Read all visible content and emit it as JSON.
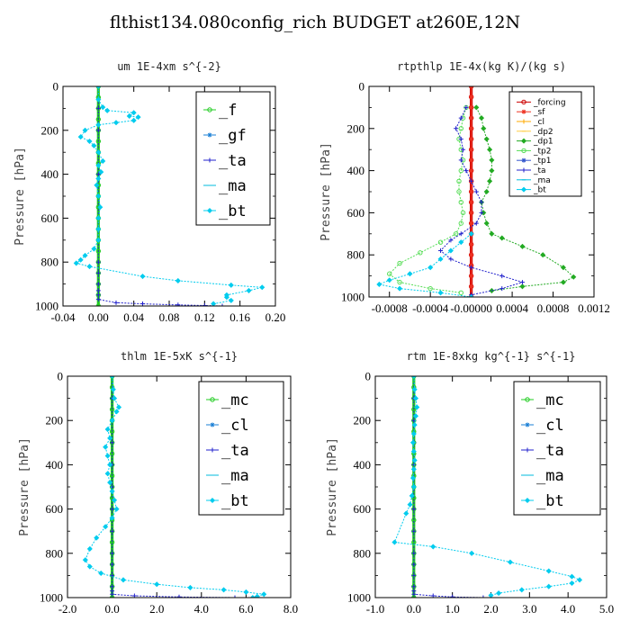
{
  "figure": {
    "title": "flthist134.080config_rich  BUDGET at260E,12N"
  },
  "chart_data": [
    {
      "type": "line",
      "title": "um  1E-4xm s^{-2}",
      "ylabel": "Pressure [hPa]",
      "xlim": [
        -0.04,
        0.2
      ],
      "ylim": [
        1000,
        0
      ],
      "x_ticks": [
        -0.04,
        0.0,
        0.04,
        0.08,
        0.12,
        0.16,
        0.2
      ],
      "x_tick_labels": [
        "-0.04",
        "0.00",
        "0.04",
        "0.08",
        "0.12",
        "0.16",
        "0.20"
      ],
      "y_ticks": [
        0,
        200,
        400,
        600,
        800,
        1000
      ],
      "legend": {
        "position": "top-right",
        "style": "big"
      },
      "series": [
        {
          "name": "_f",
          "color": "#22cc22",
          "x": [
            0,
            0,
            0,
            0,
            0,
            0,
            0,
            0,
            0,
            0,
            0,
            0,
            0,
            0,
            0,
            0,
            0,
            0,
            0,
            0,
            0
          ],
          "y": [
            0,
            50,
            100,
            150,
            200,
            250,
            300,
            350,
            400,
            450,
            500,
            550,
            600,
            650,
            700,
            750,
            800,
            850,
            900,
            950,
            1000
          ]
        },
        {
          "name": "_gf",
          "color": "#1a7fd6",
          "x": [],
          "y": []
        },
        {
          "name": "_ta",
          "color": "#2222cc",
          "x": [
            0,
            0,
            0,
            0,
            0,
            0,
            0,
            0,
            0,
            0,
            0,
            0,
            0,
            0,
            0.02,
            0.05,
            0.09,
            0.12,
            0.14
          ],
          "y": [
            0,
            100,
            200,
            300,
            400,
            500,
            600,
            700,
            800,
            850,
            900,
            930,
            950,
            970,
            985,
            990,
            995,
            998,
            1000
          ]
        },
        {
          "name": "_ma",
          "color": "#00bbdd",
          "x": [],
          "y": []
        },
        {
          "name": "_bt",
          "color": "#00ccee",
          "x": [
            0.0,
            0.0,
            0.005,
            0.01,
            0.04,
            0.035,
            0.045,
            0.04,
            0.02,
            0.0,
            -0.015,
            -0.02,
            -0.01,
            -0.005,
            0.0,
            0.005,
            0.0,
            0.003,
            0.0,
            -0.002,
            0.0,
            0.002,
            0.0,
            0.0,
            0.0,
            -0.005,
            -0.015,
            -0.02,
            -0.025,
            -0.01,
            0.05,
            0.09,
            0.15,
            0.185,
            0.17,
            0.145,
            0.145,
            0.15,
            0.13
          ],
          "y": [
            0,
            60,
            95,
            110,
            120,
            135,
            140,
            155,
            165,
            175,
            200,
            230,
            250,
            270,
            300,
            340,
            360,
            390,
            420,
            450,
            500,
            550,
            600,
            650,
            700,
            740,
            770,
            790,
            805,
            820,
            865,
            885,
            905,
            915,
            930,
            950,
            960,
            975,
            990
          ]
        }
      ]
    },
    {
      "type": "line",
      "title": "rtpthlp  1E-4x(kg K)/(kg s)",
      "ylabel": "Pressure [hPa]",
      "xlim": [
        -0.001,
        0.0012
      ],
      "ylim": [
        1000,
        0
      ],
      "x_ticks": [
        -0.0008,
        -0.0004,
        0.0,
        0.0004,
        0.0008,
        0.0012
      ],
      "x_tick_labels": [
        "-0.0008",
        "-0.0004",
        "-0.00000",
        "0.0004",
        "0.0008",
        "0.0012"
      ],
      "y_ticks": [
        0,
        200,
        400,
        600,
        800,
        1000
      ],
      "legend": {
        "position": "top-right",
        "style": "small"
      },
      "series": [
        {
          "name": "_forcing",
          "color": "#cc0000",
          "x": [
            0,
            0,
            0,
            0,
            0,
            0,
            0,
            0,
            0,
            0,
            0,
            0,
            0,
            0,
            0,
            0,
            0,
            0,
            0,
            0,
            0
          ],
          "y": [
            0,
            50,
            100,
            150,
            200,
            250,
            300,
            350,
            400,
            450,
            500,
            550,
            600,
            650,
            700,
            750,
            800,
            850,
            900,
            950,
            1000
          ]
        },
        {
          "name": "_sf",
          "color": "#ee3322",
          "x": [
            0,
            0,
            0,
            0,
            0,
            0,
            0,
            0,
            0,
            0,
            0,
            0,
            0,
            0,
            0,
            0,
            0,
            0,
            0,
            0,
            0
          ],
          "y": [
            0,
            50,
            100,
            150,
            200,
            250,
            300,
            350,
            400,
            450,
            500,
            550,
            600,
            650,
            700,
            750,
            800,
            850,
            900,
            950,
            1000
          ]
        },
        {
          "name": "_cl",
          "color": "#ffaa00",
          "x": [],
          "y": []
        },
        {
          "name": "_dp2",
          "color": "#ffcc44",
          "x": [],
          "y": []
        },
        {
          "name": "_dp1",
          "color": "#22aa22",
          "x": [
            5e-05,
            0.0001,
            0.00012,
            0.00015,
            0.00018,
            0.0002,
            0.0002,
            0.00018,
            0.00015,
            0.0001,
            0.00012,
            0.00015,
            0.0002,
            0.0003,
            0.0005,
            0.0007,
            0.0009,
            0.001,
            0.0009,
            0.0005,
            0.0002
          ],
          "y": [
            100,
            150,
            200,
            250,
            300,
            350,
            400,
            450,
            500,
            550,
            600,
            650,
            700,
            720,
            760,
            800,
            860,
            905,
            930,
            950,
            970
          ]
        },
        {
          "name": "_tp2",
          "color": "#55dd55",
          "x": [
            -5e-05,
            -8e-05,
            -0.0001,
            -0.00012,
            -0.0001,
            -8e-05,
            -0.0001,
            -0.00012,
            -0.00012,
            -0.0001,
            -8e-05,
            -0.0001,
            -0.00015,
            -0.0003,
            -0.0005,
            -0.0007,
            -0.0008,
            -0.0007,
            -0.0004,
            -0.0001
          ],
          "y": [
            100,
            150,
            200,
            250,
            300,
            350,
            400,
            450,
            500,
            550,
            600,
            650,
            700,
            740,
            790,
            840,
            890,
            930,
            960,
            980
          ]
        },
        {
          "name": "_tp1",
          "color": "#3355cc",
          "x": [],
          "y": []
        },
        {
          "name": "_ta",
          "color": "#2222cc",
          "x": [
            -5e-05,
            -0.0001,
            -0.00015,
            -0.0001,
            -8e-05,
            -0.0001,
            -5e-05,
            0.0,
            5e-05,
            0.0001,
            0.0001,
            5e-05,
            -0.0001,
            -0.0002,
            -0.0003,
            -0.0002,
            0.0,
            0.0003,
            0.0005,
            0.0003,
            0.0
          ],
          "y": [
            100,
            150,
            200,
            250,
            300,
            350,
            400,
            450,
            500,
            550,
            600,
            650,
            700,
            730,
            780,
            820,
            860,
            900,
            930,
            960,
            990
          ]
        },
        {
          "name": "_ma",
          "color": "#00bbdd",
          "x": [],
          "y": []
        },
        {
          "name": "_bt",
          "color": "#00ccee",
          "x": [
            0.0,
            -0.0001,
            -0.0002,
            -0.0003,
            -0.0004,
            -0.0006,
            -0.0008,
            -0.0009,
            -0.0007,
            -0.0003,
            0.0
          ],
          "y": [
            700,
            740,
            780,
            820,
            860,
            890,
            920,
            940,
            960,
            980,
            1000
          ]
        }
      ]
    },
    {
      "type": "line",
      "title": "thlm  1E-5xK s^{-1}",
      "ylabel": "Pressure [hPa]",
      "xlim": [
        -2.0,
        8.0
      ],
      "ylim": [
        1000,
        0
      ],
      "x_ticks": [
        -2.0,
        0.0,
        2.0,
        4.0,
        6.0,
        8.0
      ],
      "x_tick_labels": [
        "-2.0",
        "0.0",
        "2.0",
        "4.0",
        "6.0",
        "8.0"
      ],
      "y_ticks": [
        0,
        200,
        400,
        600,
        800,
        1000
      ],
      "legend": {
        "position": "top-right",
        "style": "big"
      },
      "series": [
        {
          "name": "_mc",
          "color": "#22cc22",
          "x": [
            0,
            0,
            0,
            0,
            0,
            0,
            0,
            0,
            0,
            0,
            0,
            0,
            0,
            0,
            0,
            0,
            0,
            0,
            0,
            0,
            0
          ],
          "y": [
            0,
            50,
            100,
            150,
            200,
            250,
            300,
            350,
            400,
            450,
            500,
            550,
            600,
            650,
            700,
            750,
            800,
            850,
            900,
            950,
            1000
          ]
        },
        {
          "name": "_cl",
          "color": "#1a7fd6",
          "x": [],
          "y": []
        },
        {
          "name": "_ta",
          "color": "#2222cc",
          "x": [
            0,
            0,
            0,
            0,
            0,
            0,
            0,
            0,
            0,
            0,
            0,
            0,
            0,
            0,
            1.0,
            3.0,
            5.5
          ],
          "y": [
            0,
            100,
            200,
            300,
            400,
            500,
            600,
            700,
            800,
            850,
            900,
            950,
            970,
            985,
            992,
            997,
            1000
          ]
        },
        {
          "name": "_ma",
          "color": "#00bbdd",
          "x": [],
          "y": []
        },
        {
          "name": "_bt",
          "color": "#00ccee",
          "x": [
            0.0,
            0.05,
            0.1,
            0.3,
            0.2,
            0.0,
            -0.2,
            -0.1,
            -0.3,
            -0.2,
            -0.1,
            -0.2,
            -0.1,
            0.0,
            0.1,
            0.2,
            0.0,
            -0.3,
            -0.7,
            -1.0,
            -1.2,
            -1.0,
            -0.5,
            0.5,
            2.0,
            3.5,
            5.0,
            6.0,
            6.8,
            6.5,
            6.3
          ],
          "y": [
            0,
            60,
            100,
            140,
            160,
            200,
            240,
            280,
            320,
            360,
            400,
            440,
            480,
            520,
            560,
            600,
            640,
            680,
            730,
            780,
            830,
            860,
            890,
            920,
            940,
            955,
            965,
            975,
            985,
            995,
            1000
          ]
        }
      ]
    },
    {
      "type": "line",
      "title": "rtm  1E-8xkg kg^{-1} s^{-1}",
      "ylabel": "Pressure [hPa]",
      "xlim": [
        -1.0,
        5.0
      ],
      "ylim": [
        1000,
        0
      ],
      "x_ticks": [
        -1.0,
        0.0,
        1.0,
        2.0,
        3.0,
        4.0,
        5.0
      ],
      "x_tick_labels": [
        "-1.0",
        "0.0",
        "1.0",
        "2.0",
        "3.0",
        "4.0",
        "5.0"
      ],
      "y_ticks": [
        0,
        200,
        400,
        600,
        800,
        1000
      ],
      "legend": {
        "position": "top-right",
        "style": "big"
      },
      "series": [
        {
          "name": "_mc",
          "color": "#22cc22",
          "x": [
            0,
            0,
            0,
            0,
            0,
            0,
            0,
            0,
            0,
            0,
            0,
            0,
            0,
            0,
            0,
            0,
            0,
            0,
            0,
            0,
            0
          ],
          "y": [
            0,
            50,
            100,
            150,
            200,
            250,
            300,
            350,
            400,
            450,
            500,
            550,
            600,
            650,
            700,
            750,
            800,
            850,
            900,
            950,
            1000
          ]
        },
        {
          "name": "_cl",
          "color": "#1a7fd6",
          "x": [],
          "y": []
        },
        {
          "name": "_ta",
          "color": "#2222cc",
          "x": [
            0,
            0,
            0,
            0,
            0,
            0,
            0,
            0,
            0,
            0,
            0,
            0,
            0,
            0,
            0.5,
            1.0,
            1.8
          ],
          "y": [
            0,
            100,
            200,
            300,
            400,
            500,
            600,
            700,
            800,
            850,
            900,
            950,
            970,
            985,
            992,
            997,
            1000
          ]
        },
        {
          "name": "_ma",
          "color": "#00bbdd",
          "x": [],
          "y": []
        },
        {
          "name": "_bt",
          "color": "#00ccee",
          "x": [
            0.0,
            0.02,
            0.05,
            0.08,
            0.05,
            0.02,
            0.0,
            -0.02,
            0.0,
            0.02,
            0.0,
            -0.02,
            0.0,
            -0.05,
            -0.1,
            -0.2,
            -0.5,
            0.5,
            1.5,
            2.5,
            3.5,
            4.1,
            4.3,
            4.1,
            3.5,
            2.8,
            2.2,
            2.0
          ],
          "y": [
            0,
            60,
            100,
            140,
            180,
            220,
            260,
            300,
            340,
            380,
            420,
            460,
            500,
            540,
            580,
            620,
            750,
            770,
            800,
            840,
            880,
            905,
            920,
            935,
            950,
            965,
            980,
            990
          ]
        }
      ]
    }
  ]
}
